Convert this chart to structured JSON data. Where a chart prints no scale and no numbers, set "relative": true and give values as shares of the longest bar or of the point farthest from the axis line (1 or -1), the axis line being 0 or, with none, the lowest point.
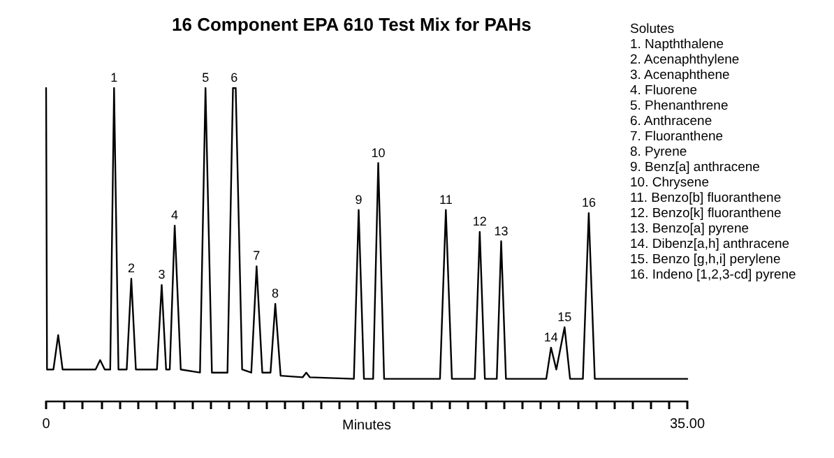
{
  "chart_data": {
    "type": "line",
    "title": "16 Component EPA 610 Test Mix for PAHs",
    "xlabel": "Minutes",
    "relative": true,
    "tick_labels": "x",
    "marker": "none",
    "line_style": "solid",
    "grid": false,
    "xlim": [
      0,
      35
    ],
    "xticks": [
      0,
      {
        "value": 1,
        "label": null
      },
      {
        "value": 2,
        "label": null
      },
      {
        "value": 3,
        "label": null
      },
      {
        "value": 4,
        "label": null
      },
      {
        "value": 5,
        "label": null
      },
      {
        "value": 6,
        "label": null
      },
      {
        "value": 7,
        "label": null
      },
      {
        "value": 8,
        "label": null
      },
      {
        "value": 9,
        "label": null
      },
      {
        "value": 10,
        "label": null
      },
      {
        "value": 11,
        "label": null
      },
      {
        "value": 12,
        "label": null
      },
      {
        "value": 13,
        "label": null
      },
      {
        "value": 14,
        "label": null
      },
      {
        "value": 15,
        "label": null
      },
      {
        "value": 16,
        "label": null
      },
      {
        "value": 17,
        "label": null
      },
      {
        "value": 18,
        "label": null
      },
      {
        "value": 19,
        "label": null
      },
      {
        "value": 20,
        "label": null
      },
      {
        "value": 21,
        "label": null
      },
      {
        "value": 22,
        "label": null
      },
      {
        "value": 23,
        "label": null
      },
      {
        "value": 24,
        "label": null
      },
      {
        "value": 25,
        "label": null
      },
      {
        "value": 26,
        "label": null
      },
      {
        "value": 27,
        "label": null
      },
      {
        "value": 28,
        "label": null
      },
      {
        "value": 29,
        "label": null
      },
      {
        "value": 30,
        "label": null
      },
      {
        "value": 31,
        "label": null
      },
      {
        "value": 32,
        "label": null
      },
      {
        "value": 33,
        "label": null
      },
      {
        "value": 34,
        "label": null
      },
      {
        "value": 35,
        "label": "35.00"
      }
    ],
    "series": [
      {
        "color": "#000000",
        "x": [
          0,
          0.05,
          0.4,
          0.66,
          0.9,
          2.7,
          2.95,
          3.2,
          3.5,
          3.71,
          3.95,
          4.4,
          4.65,
          4.9,
          6.05,
          6.31,
          6.55,
          6.75,
          7.02,
          7.35,
          8.4,
          8.7,
          9.05,
          9.9,
          10.2,
          10.35,
          10.7,
          11.2,
          11.49,
          11.8,
          12.25,
          12.51,
          12.8,
          14.0,
          14.2,
          14.4,
          16.8,
          17.06,
          17.35,
          17.85,
          18.13,
          18.45,
          21.5,
          21.82,
          22.15,
          23.4,
          23.67,
          23.95,
          24.6,
          24.84,
          25.1,
          27.3,
          27.56,
          27.85,
          28.3,
          28.6,
          29.3,
          29.62,
          29.95,
          35
        ],
        "values": [
          1.0,
          0.1,
          0.1,
          0.21,
          0.1,
          0.1,
          0.13,
          0.1,
          0.1,
          1.0,
          0.1,
          0.1,
          0.39,
          0.1,
          0.1,
          0.37,
          0.1,
          0.1,
          0.56,
          0.1,
          0.09,
          1.0,
          0.09,
          0.09,
          1.0,
          1.0,
          0.1,
          0.09,
          0.43,
          0.09,
          0.09,
          0.31,
          0.08,
          0.075,
          0.09,
          0.075,
          0.07,
          0.61,
          0.07,
          0.07,
          0.76,
          0.07,
          0.07,
          0.61,
          0.07,
          0.07,
          0.54,
          0.07,
          0.07,
          0.51,
          0.07,
          0.07,
          0.17,
          0.1,
          0.235,
          0.07,
          0.07,
          0.6,
          0.07,
          0.07
        ]
      }
    ],
    "annotations": [
      {
        "text": "1",
        "x": 3.71,
        "y": 1.0
      },
      {
        "text": "2",
        "x": 4.65,
        "y": 0.39
      },
      {
        "text": "3",
        "x": 6.31,
        "y": 0.37
      },
      {
        "text": "4",
        "x": 7.02,
        "y": 0.56
      },
      {
        "text": "5",
        "x": 8.7,
        "y": 1.0
      },
      {
        "text": "6",
        "x": 10.27,
        "y": 1.0
      },
      {
        "text": "7",
        "x": 11.49,
        "y": 0.43
      },
      {
        "text": "8",
        "x": 12.51,
        "y": 0.31
      },
      {
        "text": "9",
        "x": 17.06,
        "y": 0.61
      },
      {
        "text": "10",
        "x": 18.13,
        "y": 0.76
      },
      {
        "text": "11",
        "x": 21.82,
        "y": 0.61
      },
      {
        "text": "12",
        "x": 23.67,
        "y": 0.54
      },
      {
        "text": "13",
        "x": 24.84,
        "y": 0.51
      },
      {
        "text": "14",
        "x": 27.56,
        "y": 0.17
      },
      {
        "text": "15",
        "x": 28.3,
        "y": 0.235
      },
      {
        "text": "16",
        "x": 29.62,
        "y": 0.6
      },
      "Solutes",
      "1. Napththalene",
      "2. Acenaphthylene",
      "3. Acenaphthene",
      "4. Fluorene",
      "5. Phenanthrene",
      "6. Anthracene",
      "7. Fluoranthene",
      "8. Pyrene",
      "9. Benz[a] anthracene",
      "10. Chrysene",
      "11. Benzo[b] fluoranthene",
      "12. Benzo[k] fluoranthene",
      "13. Benzo[a] pyrene",
      "14. Dibenz[a,h] anthracene",
      "15. Benzo [g,h,i] perylene",
      "16. Indeno [1,2,3-cd] pyrene"
    ]
  }
}
